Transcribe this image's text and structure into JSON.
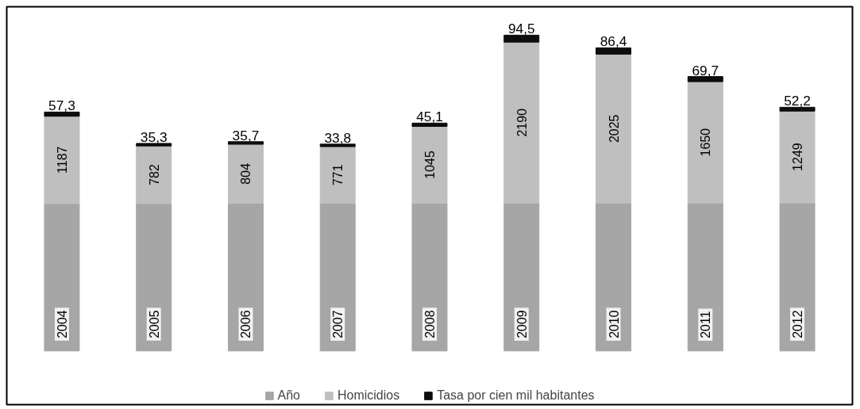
{
  "chart_data": {
    "type": "bar",
    "stacked": true,
    "legend": "bottom",
    "grid": false,
    "categories": [
      null,
      null,
      null,
      null,
      null,
      null,
      null,
      null,
      null
    ],
    "series": [
      {
        "name": "Año",
        "color": "#a6a6a6",
        "values": [
          2004,
          2005,
          2006,
          2007,
          2008,
          2009,
          2010,
          2011,
          2012
        ],
        "value_labels": [
          "2004",
          "2005",
          "2006",
          "2007",
          "2008",
          "2009",
          "2010",
          "2011",
          "2012"
        ]
      },
      {
        "name": "Homicidios",
        "color": "#bfbfbf",
        "values": [
          1187,
          782,
          804,
          771,
          1045,
          2190,
          2025,
          1650,
          1249
        ],
        "value_labels": [
          "1187",
          "782",
          "804",
          "771",
          "1045",
          "2190",
          "2025",
          "1650",
          "1249"
        ]
      },
      {
        "name": "Tasa por cien mil habitantes",
        "color": "#0d0d0d",
        "values": [
          57.3,
          35.3,
          35.7,
          33.8,
          45.1,
          94.5,
          86.4,
          69.7,
          52.2
        ],
        "value_labels": [
          "57,3",
          "35,3",
          "35,7",
          "33,8",
          "45,1",
          "94,5",
          "86,4",
          "69,7",
          "52,2"
        ]
      }
    ]
  }
}
